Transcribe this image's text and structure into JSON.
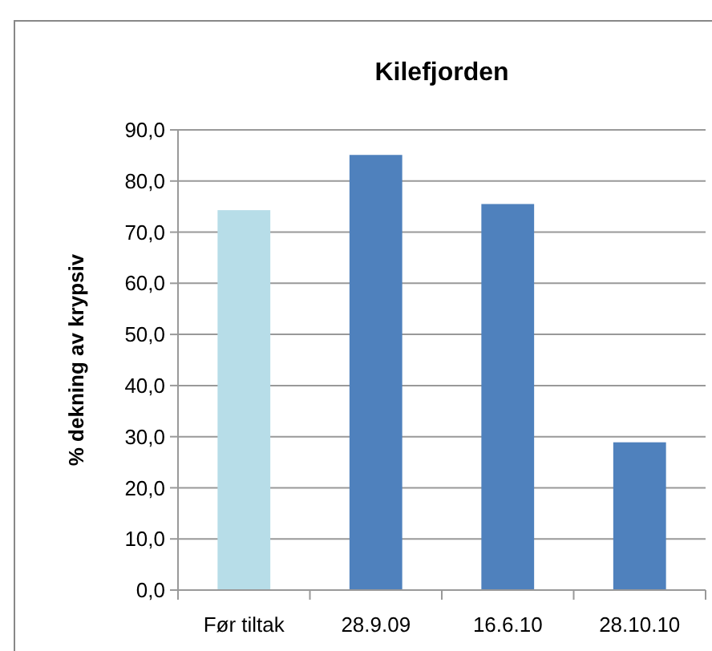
{
  "chart_data": {
    "type": "bar",
    "title": "Kilefjorden",
    "ylabel": "% dekning av krypsiv",
    "categories": [
      "Før tiltak",
      "28.9.09",
      "16.6.10",
      "28.10.10"
    ],
    "values": [
      74.3,
      85.1,
      75.5,
      28.9
    ],
    "colors": [
      "#b7dde8",
      "#4f81bd",
      "#4f81bd",
      "#4f81bd"
    ],
    "ylim": [
      0,
      90
    ],
    "yticks": [
      {
        "value": 0,
        "label": "0,0"
      },
      {
        "value": 10,
        "label": "10,0"
      },
      {
        "value": 20,
        "label": "20,0"
      },
      {
        "value": 30,
        "label": "30,0"
      },
      {
        "value": 40,
        "label": "40,0"
      },
      {
        "value": 50,
        "label": "50,0"
      },
      {
        "value": 60,
        "label": "60,0"
      },
      {
        "value": 70,
        "label": "70,0"
      },
      {
        "value": 80,
        "label": "80,0"
      },
      {
        "value": 90,
        "label": "90,0"
      }
    ],
    "grid": "y"
  }
}
